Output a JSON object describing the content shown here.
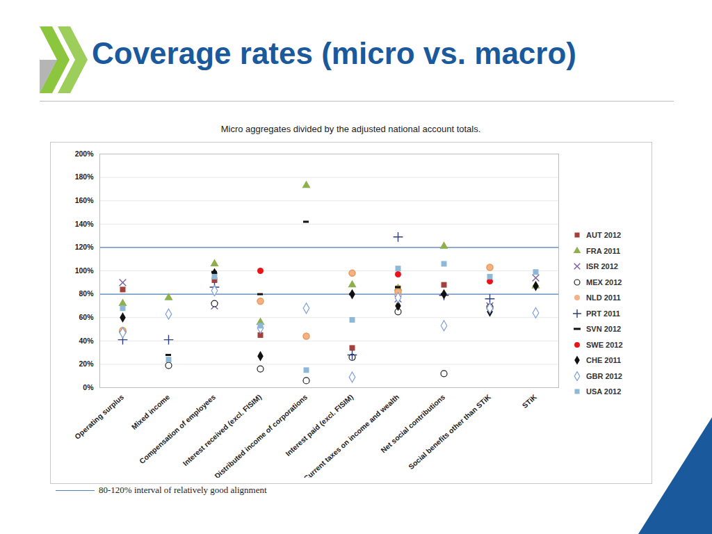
{
  "chart_data": {
    "type": "scatter",
    "title": "Coverage rates (micro vs. macro)",
    "subtitle": "Micro aggregates divided by the adjusted national account totals.",
    "categories": [
      "Operating surplus",
      "Mixed income",
      "Compensation of employees",
      "Interest received (excl. FISIM)",
      "Distributed income of corporations",
      "Interest paid (excl. FISIM)",
      "Current taxes on income and wealth",
      "Net social contributions",
      "Social benefits other than STiK",
      "STiK"
    ],
    "series": [
      {
        "name": "AUT 2012",
        "color": "#A5403A",
        "marker": "square",
        "values": [
          84,
          null,
          92,
          45,
          null,
          34,
          85,
          88,
          null,
          null
        ]
      },
      {
        "name": "FRA 2011",
        "color": "#8DB04D",
        "marker": "triangle",
        "values": [
          72,
          77,
          106,
          56,
          173,
          88,
          85,
          121,
          null,
          87
        ]
      },
      {
        "name": "ISR 2012",
        "color": "#7B5EA7",
        "marker": "x",
        "values": [
          90,
          null,
          70,
          null,
          null,
          null,
          76,
          null,
          70,
          94
        ]
      },
      {
        "name": "MEX 2012",
        "color": "#222222",
        "marker": "circle-open",
        "values": [
          48,
          19,
          72,
          16,
          6,
          26,
          65,
          12,
          69,
          null
        ]
      },
      {
        "name": "NLD 2011",
        "color": "#F4B183",
        "marker": "circle",
        "values": [
          49,
          null,
          null,
          74,
          44,
          98,
          82,
          null,
          103,
          null
        ]
      },
      {
        "name": "PRT 2011",
        "color": "#2B3F78",
        "marker": "plus",
        "values": [
          41,
          41,
          86,
          null,
          null,
          28,
          129,
          79,
          76,
          null
        ]
      },
      {
        "name": "SVN 2012",
        "color": "#111111",
        "marker": "dash",
        "values": [
          null,
          28,
          99,
          80,
          142,
          80,
          86,
          80,
          null,
          null
        ]
      },
      {
        "name": "SWE 2012",
        "color": "#E8141A",
        "marker": "circle",
        "values": [
          null,
          null,
          null,
          100,
          null,
          null,
          97,
          null,
          91,
          null
        ]
      },
      {
        "name": "CHE 2011",
        "color": "#111111",
        "marker": "diamond",
        "values": [
          60,
          null,
          98,
          27,
          null,
          80,
          70,
          80,
          65,
          87
        ]
      },
      {
        "name": "GBR 2012",
        "color": "#7F9FD6",
        "marker": "diamond-open",
        "values": [
          47,
          63,
          83,
          51,
          68,
          9,
          77,
          53,
          68,
          64
        ]
      },
      {
        "name": "USA 2012",
        "color": "#8DB8D8",
        "marker": "square",
        "values": [
          68,
          24,
          95,
          53,
          15,
          58,
          102,
          106,
          95,
          99
        ]
      }
    ],
    "ylim": [
      0,
      200
    ],
    "yticks": [
      {
        "value": 0,
        "label": "0%"
      },
      {
        "value": 20,
        "label": "20%"
      },
      {
        "value": 40,
        "label": "40%"
      },
      {
        "value": 60,
        "label": "60%"
      },
      {
        "value": 80,
        "label": "80%"
      },
      {
        "value": 100,
        "label": "100%"
      },
      {
        "value": 120,
        "label": "120%"
      },
      {
        "value": 140,
        "label": "140%"
      },
      {
        "value": 160,
        "label": "160%"
      },
      {
        "value": 180,
        "label": "180%"
      },
      {
        "value": 200,
        "label": "200%"
      }
    ],
    "grid": true,
    "legend": "right",
    "reference_lines": [
      80,
      120
    ],
    "reference_label": "80-120% interval of relatively good alignment"
  }
}
